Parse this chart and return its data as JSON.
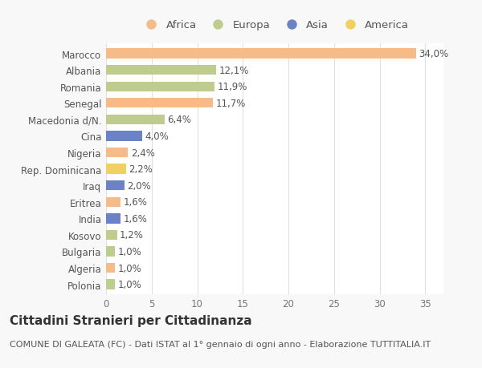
{
  "countries": [
    "Marocco",
    "Albania",
    "Romania",
    "Senegal",
    "Macedonia d/N.",
    "Cina",
    "Nigeria",
    "Rep. Dominicana",
    "Iraq",
    "Eritrea",
    "India",
    "Kosovo",
    "Bulgaria",
    "Algeria",
    "Polonia"
  ],
  "values": [
    34.0,
    12.1,
    11.9,
    11.7,
    6.4,
    4.0,
    2.4,
    2.2,
    2.0,
    1.6,
    1.6,
    1.2,
    1.0,
    1.0,
    1.0
  ],
  "labels": [
    "34,0%",
    "12,1%",
    "11,9%",
    "11,7%",
    "6,4%",
    "4,0%",
    "2,4%",
    "2,2%",
    "2,0%",
    "1,6%",
    "1,6%",
    "1,2%",
    "1,0%",
    "1,0%",
    "1,0%"
  ],
  "continents": [
    "Africa",
    "Europa",
    "Europa",
    "Africa",
    "Europa",
    "Asia",
    "Africa",
    "America",
    "Asia",
    "Africa",
    "Asia",
    "Europa",
    "Europa",
    "Africa",
    "Europa"
  ],
  "continent_colors": {
    "Africa": "#F5BC8A",
    "Europa": "#BFCC90",
    "Asia": "#6B82C4",
    "America": "#F0D060"
  },
  "legend_order": [
    "Africa",
    "Europa",
    "Asia",
    "America"
  ],
  "title": "Cittadini Stranieri per Cittadinanza",
  "subtitle": "COMUNE DI GALEATA (FC) - Dati ISTAT al 1° gennaio di ogni anno - Elaborazione TUTTITALIA.IT",
  "xlim": [
    0,
    37
  ],
  "xticks": [
    0,
    5,
    10,
    15,
    20,
    25,
    30,
    35
  ],
  "background_color": "#f8f8f8",
  "plot_background": "#ffffff",
  "grid_color": "#e0e0e0",
  "bar_height": 0.6,
  "label_fontsize": 8.5,
  "title_fontsize": 11,
  "subtitle_fontsize": 8,
  "tick_fontsize": 8.5,
  "legend_fontsize": 9.5
}
